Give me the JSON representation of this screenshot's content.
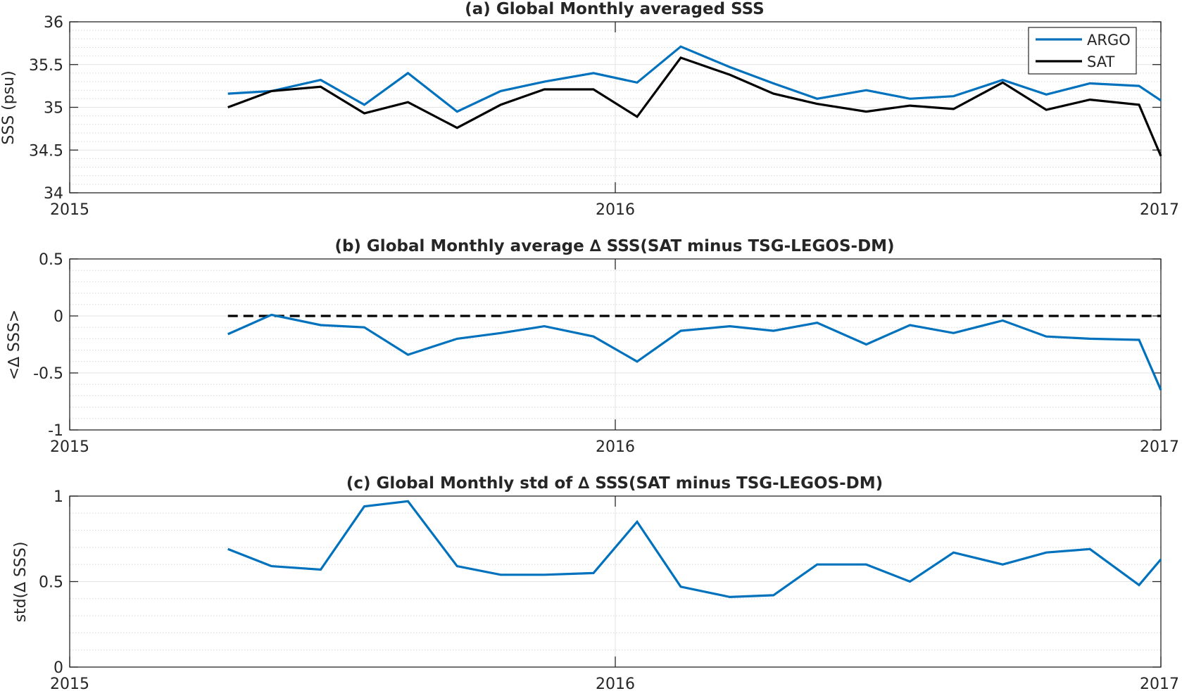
{
  "chart_data": [
    {
      "type": "line",
      "title": "(a) Global Monthly averaged SSS",
      "ylabel": "SSS (psu)",
      "xlabel": "",
      "xlim": [
        2015.0,
        2017.0
      ],
      "ylim": [
        34,
        36
      ],
      "x_ticks": [
        2015,
        2016,
        2017
      ],
      "x_tick_labels": [
        "2015",
        "2016",
        "2017"
      ],
      "y_ticks": [
        34,
        34.5,
        35,
        35.5,
        36
      ],
      "y_tick_labels": [
        "34",
        "34.5",
        "35",
        "35.5",
        "36"
      ],
      "minor_grid": true,
      "legend": {
        "placement": "top-right",
        "entries": [
          "ARGO",
          "SAT"
        ]
      },
      "x": [
        2015.29,
        2015.37,
        2015.46,
        2015.54,
        2015.62,
        2015.71,
        2015.79,
        2015.87,
        2015.96,
        2016.04,
        2016.12,
        2016.21,
        2016.29,
        2016.37,
        2016.46,
        2016.54,
        2016.62,
        2016.71,
        2016.79,
        2016.87,
        2016.96,
        2017.0
      ],
      "series": [
        {
          "name": "ARGO",
          "color": "#0072BD",
          "values": [
            35.16,
            35.19,
            35.32,
            35.03,
            35.4,
            34.95,
            35.19,
            35.3,
            35.4,
            35.29,
            35.71,
            35.47,
            35.28,
            35.1,
            35.2,
            35.1,
            35.13,
            35.32,
            35.15,
            35.28,
            35.25,
            35.08
          ]
        },
        {
          "name": "SAT",
          "color": "#000000",
          "values": [
            35.0,
            35.19,
            35.24,
            34.93,
            35.06,
            34.76,
            35.03,
            35.21,
            35.21,
            34.89,
            35.58,
            35.38,
            35.16,
            35.04,
            34.95,
            35.02,
            34.98,
            35.29,
            34.97,
            35.09,
            35.03,
            34.43
          ]
        }
      ]
    },
    {
      "type": "line",
      "title": "(b) Global Monthly average ∆ SSS(SAT minus TSG-LEGOS-DM)",
      "ylabel": "<∆ SSS>",
      "xlabel": "",
      "xlim": [
        2015.0,
        2017.0
      ],
      "ylim": [
        -1,
        0.5
      ],
      "x_ticks": [
        2015,
        2016,
        2017
      ],
      "x_tick_labels": [
        "2015",
        "2016",
        "2017"
      ],
      "y_ticks": [
        -1,
        -0.5,
        0,
        0.5
      ],
      "y_tick_labels": [
        "-1",
        "-0.5",
        "0",
        "0.5"
      ],
      "minor_grid": true,
      "reference_line": {
        "y": 0,
        "style": "dashed",
        "color": "#000000",
        "x_start": 2015.29,
        "x_end": 2017.0
      },
      "x": [
        2015.29,
        2015.37,
        2015.46,
        2015.54,
        2015.62,
        2015.71,
        2015.79,
        2015.87,
        2015.96,
        2016.04,
        2016.12,
        2016.21,
        2016.29,
        2016.37,
        2016.46,
        2016.54,
        2016.62,
        2016.71,
        2016.79,
        2016.87,
        2016.96,
        2017.0
      ],
      "series": [
        {
          "color": "#0072BD",
          "values": [
            -0.16,
            0.01,
            -0.08,
            -0.1,
            -0.34,
            -0.2,
            -0.15,
            -0.09,
            -0.18,
            -0.4,
            -0.13,
            -0.09,
            -0.13,
            -0.06,
            -0.25,
            -0.08,
            -0.15,
            -0.04,
            -0.18,
            -0.2,
            -0.21,
            -0.65
          ]
        }
      ]
    },
    {
      "type": "line",
      "title": "(c) Global Monthly std of ∆ SSS(SAT minus TSG-LEGOS-DM)",
      "ylabel": "std(∆ SSS)",
      "xlabel": "",
      "xlim": [
        2015.0,
        2017.0
      ],
      "ylim": [
        0,
        1
      ],
      "x_ticks": [
        2015,
        2016,
        2017
      ],
      "x_tick_labels": [
        "2015",
        "2016",
        "2017"
      ],
      "y_ticks": [
        0,
        0.5,
        1
      ],
      "y_tick_labels": [
        "0",
        "0.5",
        "1"
      ],
      "minor_grid": true,
      "x": [
        2015.29,
        2015.37,
        2015.46,
        2015.54,
        2015.62,
        2015.71,
        2015.79,
        2015.87,
        2015.96,
        2016.04,
        2016.12,
        2016.21,
        2016.29,
        2016.37,
        2016.46,
        2016.54,
        2016.62,
        2016.71,
        2016.79,
        2016.87,
        2016.96,
        2017.0
      ],
      "series": [
        {
          "color": "#0072BD",
          "values": [
            0.69,
            0.59,
            0.57,
            0.94,
            0.97,
            0.59,
            0.54,
            0.54,
            0.55,
            0.85,
            0.47,
            0.41,
            0.42,
            0.6,
            0.6,
            0.5,
            0.67,
            0.6,
            0.67,
            0.69,
            0.48,
            0.63
          ]
        }
      ]
    }
  ]
}
